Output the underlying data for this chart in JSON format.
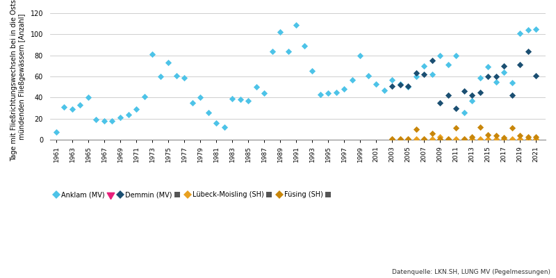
{
  "ylabel": "Tage mit Fließrichtungswechseln bei in die Ostsee\nmündenden Fließgewässern [Anzahl]",
  "source": "Datenquelle: LKN.SH, LUNG MV (Pegelmessungen)",
  "ylim": [
    0,
    120
  ],
  "yticks": [
    0,
    20,
    40,
    60,
    80,
    100,
    120
  ],
  "anklam": {
    "years": [
      1961,
      1962,
      1963,
      1964,
      1965,
      1966,
      1967,
      1968,
      1969,
      1970,
      1971,
      1972,
      1973,
      1974,
      1975,
      1976,
      1977,
      1978,
      1979,
      1980,
      1981,
      1982,
      1983,
      1984,
      1985,
      1986,
      1987,
      1988,
      1989,
      1990,
      1991,
      1992,
      1993,
      1994,
      1995,
      1996,
      1997,
      1998,
      1999,
      2000,
      2001,
      2002,
      2003,
      2004,
      2005,
      2006,
      2007,
      2008,
      2009,
      2010,
      2011,
      2012,
      2013,
      2014,
      2015,
      2016,
      2017,
      2018,
      2019,
      2020,
      2021
    ],
    "values": [
      7,
      31,
      29,
      33,
      40,
      19,
      18,
      18,
      21,
      24,
      29,
      41,
      81,
      60,
      73,
      61,
      59,
      35,
      40,
      26,
      16,
      12,
      39,
      38,
      37,
      50,
      44,
      84,
      102,
      84,
      109,
      89,
      65,
      43,
      44,
      45,
      48,
      57,
      80,
      61,
      53,
      47,
      57,
      53,
      50,
      60,
      70,
      62,
      80,
      71,
      80,
      26,
      37,
      59,
      69,
      55,
      64,
      54,
      101,
      104,
      105
    ],
    "color": "#4DC3E8",
    "label": "Anklam (MV)"
  },
  "demmin": {
    "years": [
      2003,
      2004,
      2005,
      2006,
      2007,
      2008,
      2009,
      2010,
      2011,
      2012,
      2013,
      2014,
      2015,
      2016,
      2017,
      2018,
      2019,
      2020,
      2021
    ],
    "values": [
      51,
      52,
      51,
      63,
      62,
      75,
      35,
      42,
      30,
      46,
      42,
      45,
      60,
      60,
      70,
      42,
      71,
      84,
      61
    ],
    "color": "#1B4F72",
    "label": "Demmin (MV)"
  },
  "luebeck": {
    "years": [
      2003,
      2004,
      2005,
      2006,
      2007,
      2008,
      2009,
      2010,
      2011,
      2012,
      2013,
      2014,
      2015,
      2016,
      2017,
      2018,
      2019,
      2020,
      2021
    ],
    "values": [
      1,
      1,
      1,
      1,
      1,
      1,
      3,
      1,
      1,
      1,
      1,
      1,
      1,
      1,
      1,
      1,
      1,
      1,
      1
    ],
    "color": "#E8A020",
    "label": "Lübeck-Moisling (SH)"
  },
  "fuesing": {
    "years": [
      2003,
      2004,
      2005,
      2006,
      2007,
      2008,
      2009,
      2010,
      2011,
      2012,
      2013,
      2014,
      2015,
      2016,
      2017,
      2018,
      2019,
      2020,
      2021
    ],
    "values": [
      1,
      1,
      1,
      10,
      1,
      6,
      1,
      1,
      11,
      1,
      3,
      12,
      5,
      4,
      2,
      11,
      4,
      3,
      3
    ],
    "color": "#C8860A",
    "label": "Füsing (SH)"
  },
  "trend_arrow_color": "#E8207A",
  "trend_bar_color": "#555555",
  "bg_color": "#ffffff",
  "grid_color": "#bbbbbb",
  "xlim": [
    1960.2,
    2022.2
  ],
  "xticks": [
    1961,
    1963,
    1965,
    1967,
    1969,
    1971,
    1973,
    1975,
    1977,
    1979,
    1981,
    1983,
    1985,
    1987,
    1989,
    1991,
    1993,
    1995,
    1997,
    1999,
    2001,
    2003,
    2005,
    2007,
    2009,
    2011,
    2013,
    2015,
    2017,
    2019,
    2021
  ]
}
